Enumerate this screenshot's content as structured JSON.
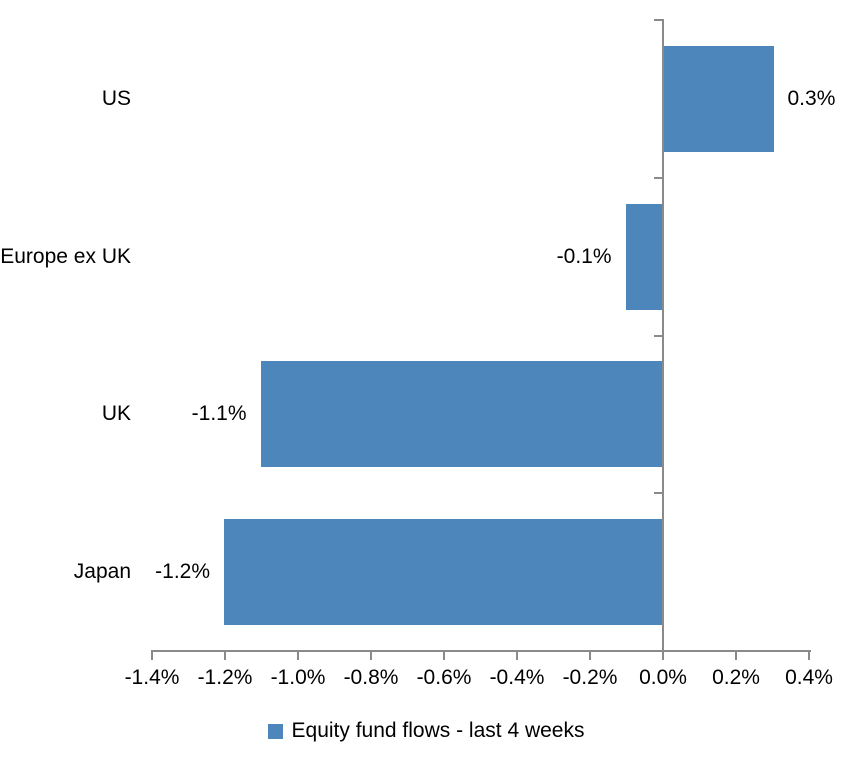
{
  "chart_data": {
    "type": "bar",
    "orientation": "horizontal",
    "categories": [
      "US",
      "Europe ex UK",
      "UK",
      "Japan"
    ],
    "series": [
      {
        "name": "Equity fund flows - last 4 weeks",
        "values": [
          0.3,
          -0.1,
          -1.1,
          -1.2
        ],
        "data_labels": [
          "0.3%",
          "-0.1%",
          "-1.1%",
          "-1.2%"
        ]
      }
    ],
    "x_axis": {
      "min": -1.4,
      "max": 0.4,
      "tick_values": [
        -1.4,
        -1.2,
        -1.0,
        -0.8,
        -0.6,
        -0.4,
        -0.2,
        0.0,
        0.2,
        0.4
      ],
      "tick_labels": [
        "-1.4%",
        "-1.2%",
        "-1.0%",
        "-0.8%",
        "-0.6%",
        "-0.4%",
        "-0.2%",
        "0.0%",
        "0.2%",
        "0.4%"
      ]
    },
    "legend": {
      "label": "Equity fund flows - last 4 weeks",
      "position": "bottom"
    },
    "grid": false,
    "colors": {
      "bar": "#4D86BB",
      "axis": "#8A8A8A",
      "text": "#000000",
      "background": "#FFFFFF"
    }
  }
}
